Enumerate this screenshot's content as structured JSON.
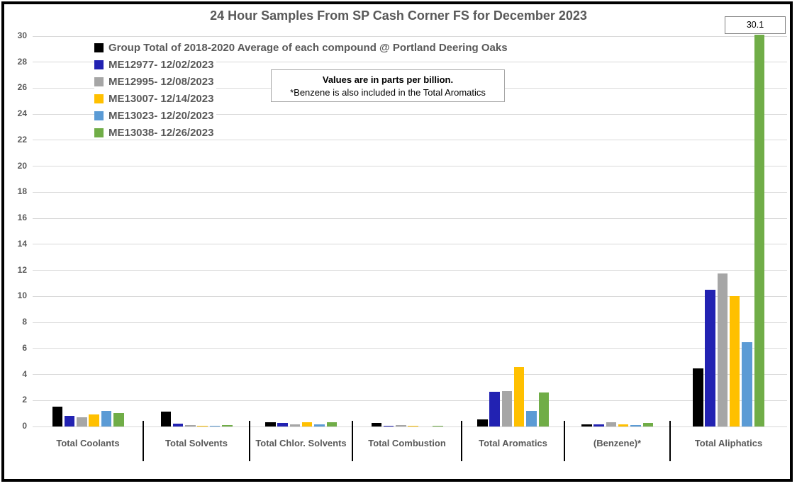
{
  "chart_data": {
    "type": "bar",
    "title": "24 Hour Samples From SP Cash Corner FS for December 2023",
    "values_unit": "parts per billion",
    "xlabel": "",
    "ylabel": "",
    "ylim": [
      0,
      30
    ],
    "ytick_step": 2,
    "yticks": [
      0,
      2,
      4,
      6,
      8,
      10,
      12,
      14,
      16,
      18,
      20,
      22,
      24,
      26,
      28,
      30
    ],
    "grid": true,
    "legend_position": "inside-top-left",
    "categories": [
      "Total Coolants",
      "Total Solvents",
      "Total Chlor. Solvents",
      "Total Combustion",
      "Total Aromatics",
      "(Benzene)*",
      "Total Aliphatics"
    ],
    "series": [
      {
        "name": "Group Total of 2018-2020 Average of each compound @ Portland Deering Oaks",
        "color": "#000000",
        "values": [
          1.5,
          1.15,
          0.35,
          0.25,
          0.55,
          0.17,
          4.45
        ]
      },
      {
        "name": "ME12977- 12/02/2023",
        "color": "#2222B2",
        "values": [
          0.8,
          0.2,
          0.25,
          0.08,
          2.65,
          0.18,
          10.5
        ]
      },
      {
        "name": "ME12995- 12/08/2023",
        "color": "#A6A6A6",
        "values": [
          0.7,
          0.12,
          0.15,
          0.12,
          2.7,
          0.35,
          11.75
        ]
      },
      {
        "name": "ME13007- 12/14/2023",
        "color": "#FFC000",
        "values": [
          0.9,
          0.08,
          0.35,
          0.08,
          4.55,
          0.17,
          10.0
        ]
      },
      {
        "name": "ME13023- 12/20/2023",
        "color": "#5B9BD5",
        "values": [
          1.2,
          0.08,
          0.15,
          0,
          1.2,
          0.12,
          6.5
        ]
      },
      {
        "name": "ME13038- 12/26/2023",
        "color": "#70AD47",
        "values": [
          1.05,
          0.13,
          0.35,
          0.08,
          2.6,
          0.25,
          30.1
        ]
      }
    ],
    "note_box": {
      "line1": "Values are in parts per billion.",
      "line2": "*Benzene is also included in the Total Aromatics"
    },
    "annotations": [
      {
        "text": "30.1",
        "value": 30.1,
        "series": "ME13038- 12/26/2023",
        "category": "Total Aliphatics"
      }
    ]
  }
}
